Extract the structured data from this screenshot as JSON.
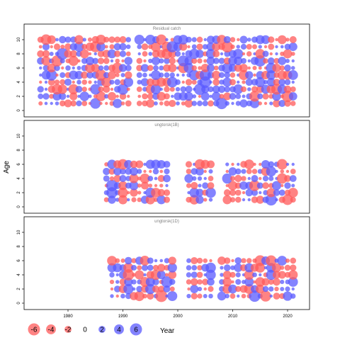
{
  "chart_data": {
    "type": "scatter",
    "ylabel": "Age",
    "xlabel": "Year",
    "x_ticks": [
      1980,
      1990,
      2000,
      2010,
      2020
    ],
    "y_ticks": [
      0,
      2,
      4,
      6,
      8,
      10
    ],
    "xlim": [
      1972,
      2024
    ],
    "ylim": [
      -0.5,
      11
    ],
    "positive_color": "#5a5aff",
    "negative_color": "#ff5a5a",
    "legend": {
      "values": [
        -6,
        -4,
        -2,
        0,
        2,
        4,
        6
      ],
      "labels": [
        "-6",
        "-4",
        "-2",
        "0",
        "2",
        "4",
        "6"
      ],
      "placement": "bottom"
    },
    "panels": [
      {
        "title": "Residual catch",
        "years": [
          1975,
          1976,
          1977,
          1978,
          1979,
          1980,
          1981,
          1982,
          1983,
          1984,
          1985,
          1986,
          1987,
          1988,
          1989,
          1990,
          1991,
          1993,
          1994,
          1995,
          1996,
          1997,
          1998,
          1999,
          2000,
          2001,
          2002,
          2003,
          2004,
          2005,
          2006,
          2007,
          2008,
          2009,
          2010,
          2011,
          2012,
          2013,
          2014,
          2015,
          2016,
          2017,
          2018,
          2019,
          2020,
          2021
        ],
        "ages": [
          1,
          2,
          3,
          4,
          5,
          6,
          7,
          8,
          9,
          10
        ],
        "seed": 11
      },
      {
        "title": "ungtorsk(1B)",
        "years": [
          1987,
          1988,
          1989,
          1990,
          1991,
          1992,
          1993,
          1994,
          1995,
          1996,
          1997,
          1998,
          2002,
          2003,
          2004,
          2005,
          2006,
          2009,
          2010,
          2011,
          2012,
          2013,
          2014,
          2015,
          2016,
          2017,
          2018,
          2019,
          2020,
          2021
        ],
        "ages": [
          1,
          2,
          3,
          4,
          5,
          6
        ],
        "seed": 23
      },
      {
        "title": "ungtorsk(1D)",
        "years": [
          1988,
          1989,
          1990,
          1991,
          1992,
          1993,
          1994,
          1995,
          1996,
          1997,
          1998,
          1999,
          2002,
          2003,
          2004,
          2005,
          2006,
          2008,
          2009,
          2010,
          2011,
          2012,
          2013,
          2014,
          2015,
          2016,
          2017,
          2018,
          2019,
          2020,
          2021
        ],
        "ages": [
          1,
          2,
          3,
          4,
          5,
          6
        ],
        "seed": 37
      }
    ]
  }
}
